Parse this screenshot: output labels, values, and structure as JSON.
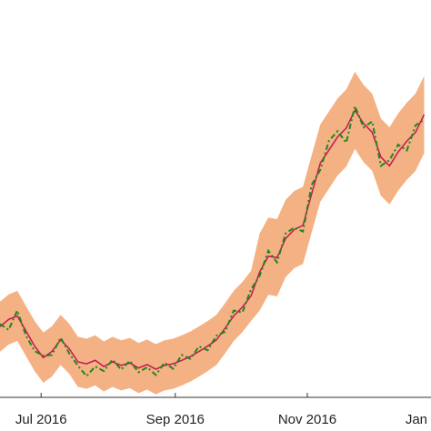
{
  "chart_data": {
    "type": "line",
    "x": [
      "2016-06-12",
      "2016-06-16",
      "2016-06-20",
      "2016-06-24",
      "2016-06-28",
      "2016-07-02",
      "2016-07-06",
      "2016-07-10",
      "2016-07-14",
      "2016-07-18",
      "2016-07-22",
      "2016-07-26",
      "2016-07-30",
      "2016-08-03",
      "2016-08-07",
      "2016-08-11",
      "2016-08-15",
      "2016-08-19",
      "2016-08-23",
      "2016-08-27",
      "2016-08-31",
      "2016-09-04",
      "2016-09-08",
      "2016-09-12",
      "2016-09-16",
      "2016-09-20",
      "2016-09-24",
      "2016-09-28",
      "2016-10-02",
      "2016-10-06",
      "2016-10-10",
      "2016-10-14",
      "2016-10-18",
      "2016-10-22",
      "2016-10-26",
      "2016-10-30",
      "2016-11-03",
      "2016-11-07",
      "2016-11-11",
      "2016-11-15",
      "2016-11-19",
      "2016-11-23",
      "2016-11-27",
      "2016-12-01",
      "2016-12-05",
      "2016-12-09",
      "2016-12-13",
      "2016-12-17",
      "2016-12-21",
      "2016-12-25"
    ],
    "band": {
      "color": "#f4b183",
      "upper": [
        21.8,
        23.7,
        24.6,
        20.7,
        16.8,
        13.8,
        15.4,
        18.4,
        16.1,
        12.7,
        12.2,
        13.1,
        11.5,
        12.7,
        11.8,
        12.4,
        11.1,
        12.0,
        10.8,
        11.8,
        12.2,
        13.1,
        14.1,
        15.4,
        16.8,
        18.4,
        21.4,
        24.6,
        26.9,
        29.8,
        39.5,
        43.6,
        43.2,
        48.2,
        50.5,
        51.6,
        59.7,
        67.7,
        71.1,
        74.5,
        76.8,
        81.4,
        78.0,
        75.7,
        69.3,
        67.0,
        70.6,
        73.4,
        75.7,
        80.3
      ],
      "lower": [
        8.8,
        10.7,
        11.6,
        7.7,
        3.8,
        0.8,
        2.4,
        5.4,
        3.1,
        -0.3,
        -0.8,
        0.1,
        -1.5,
        -0.3,
        -1.2,
        -0.6,
        -1.9,
        -1.0,
        -2.2,
        -1.2,
        -0.8,
        0.1,
        1.1,
        2.4,
        3.8,
        5.4,
        8.4,
        11.6,
        13.9,
        16.8,
        19.5,
        23.6,
        23.2,
        28.2,
        30.5,
        31.6,
        39.7,
        47.7,
        51.1,
        54.5,
        56.8,
        61.4,
        58.0,
        55.7,
        49.3,
        47.0,
        50.6,
        53.4,
        55.7,
        60.3
      ]
    },
    "series": [
      {
        "color": "#c2185b",
        "style": "solid",
        "values": [
          15.3,
          17.2,
          18.1,
          14.2,
          10.3,
          7.3,
          8.9,
          11.9,
          9.6,
          6.2,
          5.7,
          6.6,
          5.0,
          6.2,
          5.3,
          5.9,
          4.6,
          5.5,
          4.3,
          5.3,
          5.7,
          6.6,
          7.6,
          8.9,
          10.3,
          11.9,
          14.9,
          18.1,
          20.4,
          23.3,
          29.5,
          33.6,
          33.2,
          38.2,
          40.5,
          41.6,
          49.7,
          57.7,
          61.1,
          64.5,
          66.8,
          71.4,
          68.0,
          65.7,
          59.3,
          57.0,
          60.6,
          63.4,
          65.7,
          70.3
        ]
      },
      {
        "color": "#1a8a1a",
        "style": "dashdot",
        "values": [
          16.0,
          14.5,
          19.5,
          13.0,
          9.0,
          7.8,
          8.0,
          12.5,
          8.4,
          5.2,
          2.5,
          5.0,
          3.8,
          6.8,
          4.2,
          6.5,
          3.5,
          4.8,
          2.8,
          6.0,
          4.4,
          8.0,
          7.0,
          10.2,
          9.2,
          13.0,
          14.0,
          19.5,
          19.0,
          25.0,
          28.5,
          35.0,
          32.0,
          39.5,
          41.0,
          40.0,
          52.0,
          56.0,
          63.5,
          66.0,
          63.0,
          72.5,
          67.0,
          68.5,
          57.0,
          58.5,
          62.5,
          61.0,
          67.5,
          69.0
        ]
      }
    ],
    "xlim": [
      "2016-06-12",
      "2016-12-28"
    ],
    "xticks": [
      {
        "value": "2016-07-01",
        "label": "Jul 2016"
      },
      {
        "value": "2016-09-01",
        "label": "Sep 2016"
      },
      {
        "value": "2016-11-01",
        "label": "Nov 2016"
      },
      {
        "value": "2017-01-01",
        "label": "Jan"
      }
    ],
    "ylim": [
      -3,
      100
    ]
  }
}
